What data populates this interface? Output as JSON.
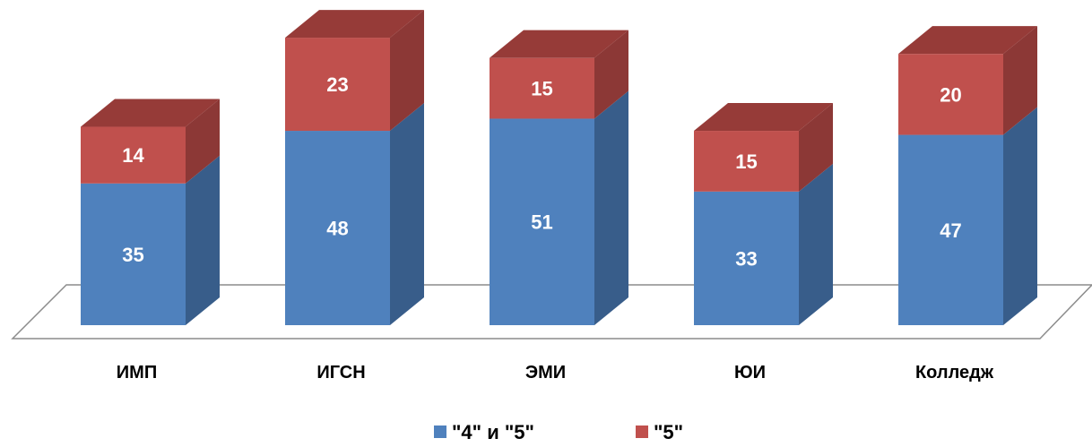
{
  "chart_data": {
    "type": "bar",
    "stacked": true,
    "style": "3d-stacked-column",
    "categories": [
      "ИМП",
      "ИГСН",
      "ЭМИ",
      "ЮИ",
      "Колледж"
    ],
    "series": [
      {
        "name": "\"4\" и \"5\"",
        "values": [
          35,
          48,
          51,
          33,
          47
        ],
        "color": "#4F81BD",
        "side_color": "#385D8A",
        "top_color": "#4F81BD"
      },
      {
        "name": "\"5\"",
        "values": [
          14,
          23,
          15,
          15,
          20
        ],
        "color": "#C0504D",
        "side_color": "#8C3836",
        "top_color": "#963B38"
      }
    ],
    "ylim": [
      0,
      71
    ],
    "grid": false,
    "legend": "bottom",
    "title": "",
    "xlabel": "",
    "ylabel": ""
  }
}
